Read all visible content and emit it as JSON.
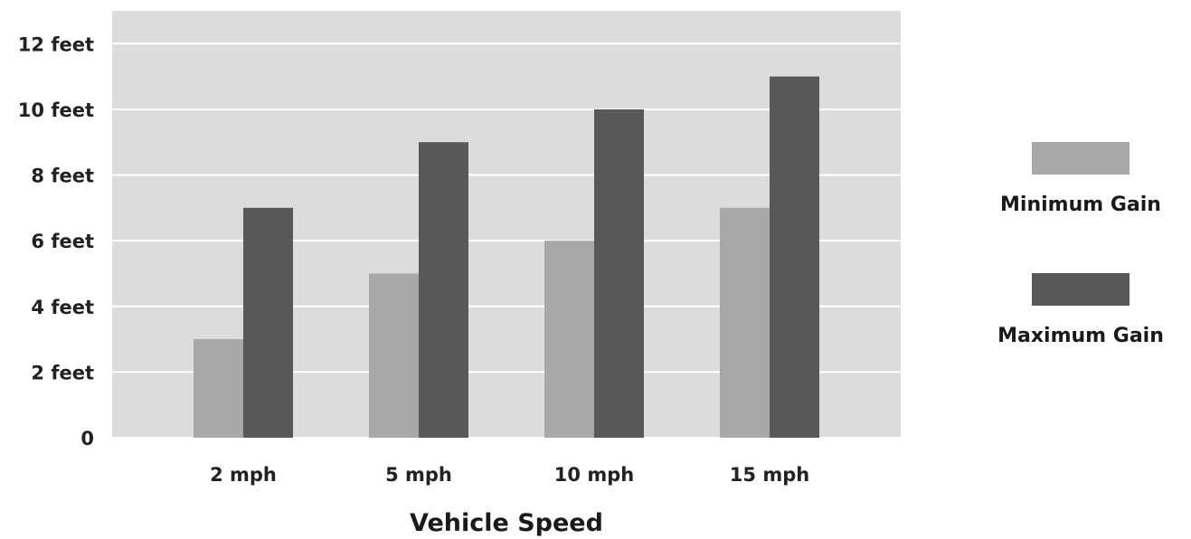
{
  "chart_data": {
    "type": "bar",
    "categories": [
      "2 mph",
      "5 mph",
      "10 mph",
      "15 mph"
    ],
    "series": [
      {
        "name": "Minimum Gain",
        "values": [
          3,
          5,
          6,
          7
        ],
        "color": "#a8a8aa"
      },
      {
        "name": "Maximum Gain",
        "values": [
          7,
          9,
          10,
          11
        ],
        "color": "#58585a"
      }
    ],
    "y_ticks": [
      {
        "value": 0,
        "label": "0"
      },
      {
        "value": 2,
        "label": "2 feet"
      },
      {
        "value": 4,
        "label": "4 feet"
      },
      {
        "value": 6,
        "label": "6 feet"
      },
      {
        "value": 8,
        "label": "8 feet"
      },
      {
        "value": 10,
        "label": "10 feet"
      },
      {
        "value": 12,
        "label": "12 feet"
      }
    ],
    "ylim": [
      0,
      13
    ],
    "xlabel": "Vehicle Speed",
    "ylabel": "",
    "title": "",
    "grid": true,
    "legend_position": "right",
    "plot_background": "#dcdcde",
    "grid_color": "#ffffff"
  }
}
